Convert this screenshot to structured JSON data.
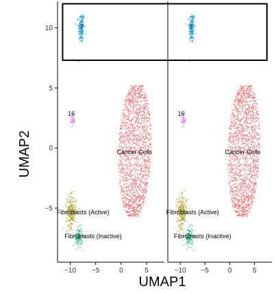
{
  "chart_data": {
    "type": "scatter",
    "title": "",
    "xlabel": "UMAP1",
    "ylabel": "UMAP2",
    "panels": 2,
    "xlim": [
      -12.5,
      8.5
    ],
    "ylim": [
      -9.5,
      12.2
    ],
    "x_ticks": [
      -10,
      -5,
      0,
      5
    ],
    "x_tick_labels": [
      "−10",
      "−5",
      "0",
      "5"
    ],
    "y_ticks": [
      -5,
      0,
      5,
      10
    ],
    "y_tick_labels": [
      "−5",
      "0",
      "5",
      "10"
    ],
    "grid": false,
    "legend": "none",
    "highlight_box": {
      "xlim": [
        -11.5,
        7.5
      ],
      "ylim": [
        7.3,
        12.0
      ]
    },
    "clusters": [
      {
        "id": "7",
        "label": "7",
        "color": "#1fa3e0",
        "center": [
          -7.8,
          10.0
        ],
        "spread": [
          0.55,
          1.2
        ],
        "shape": "blob",
        "label_pos": [
          -7.8,
          9.9
        ]
      },
      {
        "id": "16",
        "label": "16",
        "color": "#dd7fe8",
        "center": [
          -9.5,
          2.3
        ],
        "spread": [
          0.4,
          0.45
        ],
        "shape": "blob",
        "label_pos": [
          -9.8,
          2.7
        ]
      },
      {
        "id": "cancer",
        "label": "Cancer Cells",
        "color": "#f36d6d",
        "center": [
          2.5,
          -0.3
        ],
        "shape": "band",
        "top": 5.2,
        "bottom": -5.7,
        "label_pos": [
          2.6,
          -0.5
        ]
      },
      {
        "id": "fib_active",
        "label": "Fibroblasts (Active)",
        "color": "#a9a51f",
        "center": [
          -9.8,
          -5.3
        ],
        "spread": [
          0.9,
          1.2
        ],
        "shape": "blob",
        "label_pos": [
          -7.5,
          -5.5
        ]
      },
      {
        "id": "fib_inactive",
        "label": "Fibroblasts (Inactive)",
        "color": "#27b385",
        "center": [
          -8.3,
          -7.4
        ],
        "spread": [
          0.7,
          0.7
        ],
        "shape": "blob",
        "label_pos": [
          -5.5,
          -7.5
        ]
      }
    ]
  }
}
